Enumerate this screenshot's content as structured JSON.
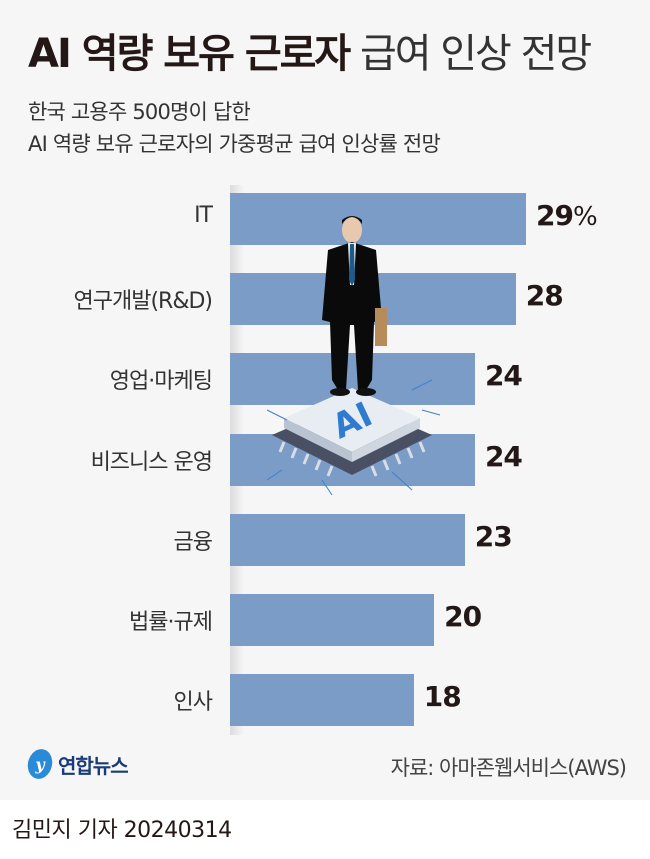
{
  "header": {
    "title_bold": "AI 역량 보유 근로자",
    "title_light": "급여 인상 전망",
    "subtitle_line1": "한국 고용주 500명이 답한",
    "subtitle_line2": "AI 역량 보유 근로자의 가중평균 급여 인상률 전망"
  },
  "chart_data": {
    "type": "bar",
    "orientation": "horizontal",
    "title": "AI 역량 보유 근로자 급여 인상 전망",
    "subtitle": "한국 고용주 500명이 답한 AI 역량 보유 근로자의 가중평균 급여 인상률 전망",
    "categories": [
      "IT",
      "연구개발(R&D)",
      "영업·마케팅",
      "비즈니스 운영",
      "금융",
      "법률·규제",
      "인사"
    ],
    "values": [
      29,
      28,
      24,
      24,
      23,
      20,
      18
    ],
    "value_labels": [
      "29",
      "28",
      "24",
      "24",
      "23",
      "20",
      "18"
    ],
    "unit": "%",
    "xlabel": "",
    "ylabel": "",
    "grid": false,
    "legend": "none",
    "bar_color": "#7a9cc6"
  },
  "illustration": {
    "label": "AI",
    "description": "businessman standing on AI chip"
  },
  "footer": {
    "logo_text": "연합뉴스",
    "source": "자료: 아마존웹서비스(AWS)",
    "byline": "김민지 기자  20240314"
  }
}
